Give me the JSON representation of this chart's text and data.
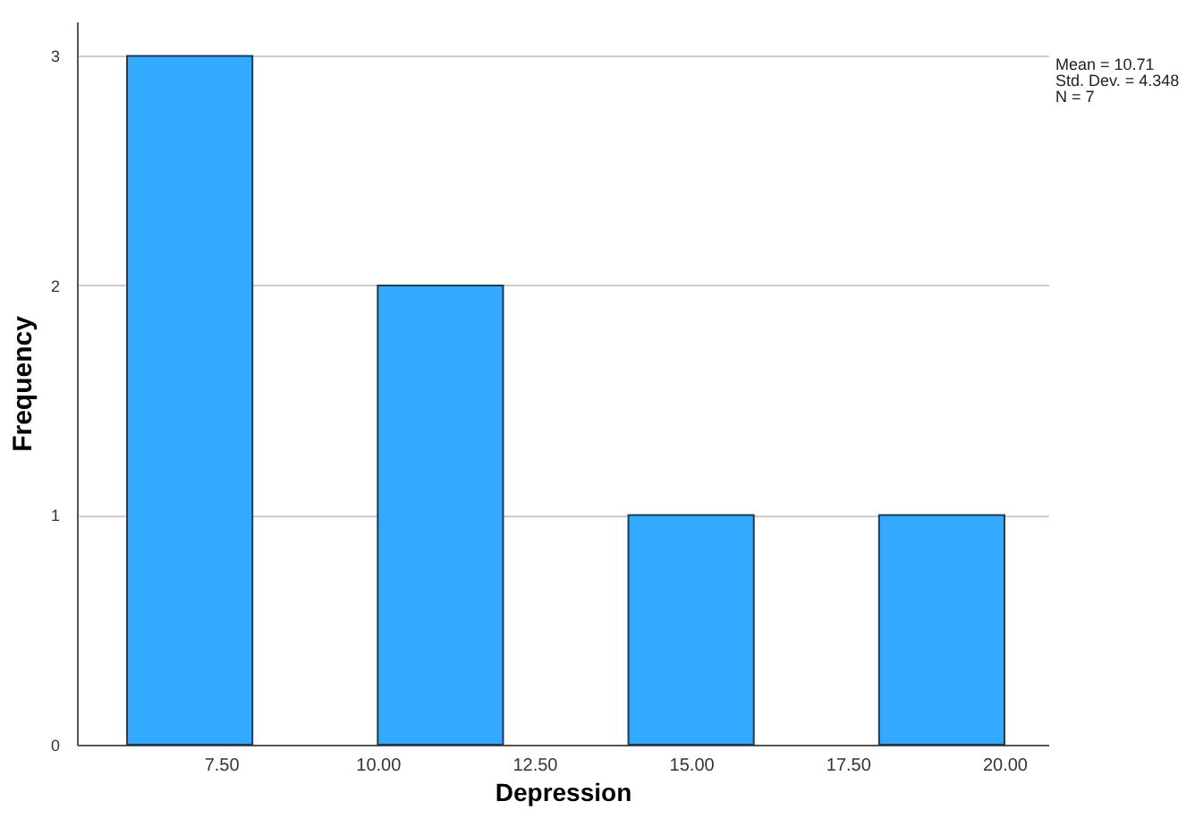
{
  "chart_data": {
    "type": "histogram",
    "xlabel": "Depression",
    "ylabel": "Frequency",
    "bins": [
      6,
      8,
      10,
      12,
      14,
      16,
      18,
      20
    ],
    "values": [
      3,
      0,
      2,
      0,
      1,
      0,
      1
    ],
    "color": "#33aaff",
    "xlim": [
      5.2,
      20.7
    ],
    "xticks": [
      {
        "value": 7.5,
        "label": "7.50"
      },
      {
        "value": 10,
        "label": "10.00"
      },
      {
        "value": 12.5,
        "label": "12.50"
      },
      {
        "value": 15,
        "label": "15.00"
      },
      {
        "value": 17.5,
        "label": "17.50"
      },
      {
        "value": 20,
        "label": "20.00"
      }
    ],
    "ylim": [
      0,
      3.15
    ],
    "yticks": [
      0,
      1,
      2,
      3
    ],
    "grid": "y",
    "annotations": [
      "Mean = 10.71",
      "Std. Dev. = 4.348",
      "N = 7"
    ]
  }
}
